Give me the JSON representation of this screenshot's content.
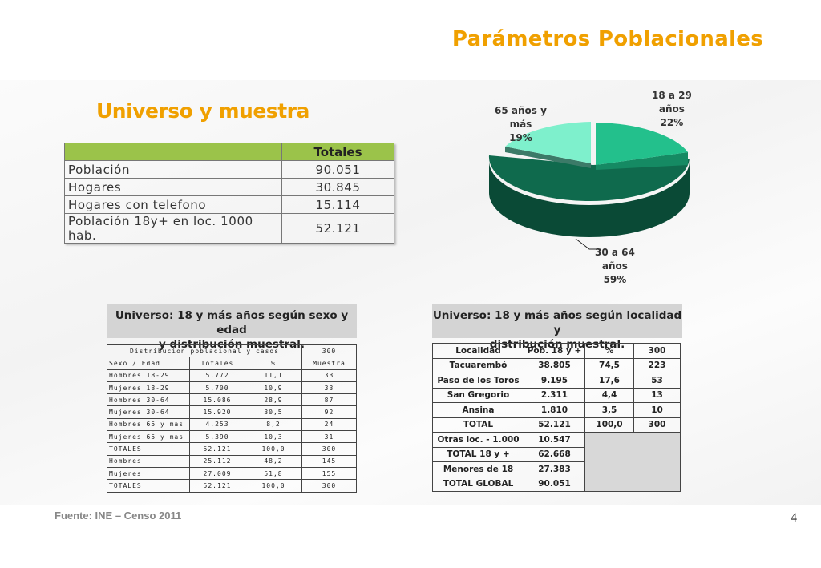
{
  "slide": {
    "title": "Parámetros Poblacionales",
    "page_number": "4",
    "subheading": "Universo y muestra",
    "source": "Fuente: INE – Censo 2011"
  },
  "universe_table": {
    "header": "Totales",
    "rows": [
      {
        "label": "Población",
        "value": "90.051"
      },
      {
        "label": "Hogares",
        "value": "30.845"
      },
      {
        "label": "Hogares con telefono",
        "value": "15.114"
      },
      {
        "label": "Población 18y+ en loc. 1000 hab.",
        "value": "52.121"
      }
    ]
  },
  "pie": {
    "slices": [
      {
        "label_lines": [
          "18 a 29",
          "años",
          "22%"
        ],
        "percent": 22,
        "color": "#23c08c"
      },
      {
        "label_lines": [
          "30 a 64",
          "años",
          "59%"
        ],
        "percent": 59,
        "color": "#0f6a4d"
      },
      {
        "label_lines": [
          "65 años y",
          "más",
          "19%"
        ],
        "percent": 19,
        "color": "#7ef0cc"
      }
    ]
  },
  "sexage": {
    "heading_line1": "Universo: 18 y más años según sexo y edad",
    "heading_line2": "y distribución muestral.",
    "top_row": {
      "label": "Distribucion poblacional y casos",
      "value": "300"
    },
    "columns": [
      "Sexo / Edad",
      "Totales",
      "%",
      "Muestra"
    ],
    "rows": [
      [
        "Hombres 18-29",
        "5.772",
        "11,1",
        "33"
      ],
      [
        "Mujeres 18-29",
        "5.700",
        "10,9",
        "33"
      ],
      [
        "Hombres 30-64",
        "15.086",
        "28,9",
        "87"
      ],
      [
        "Mujeres 30-64",
        "15.920",
        "30,5",
        "92"
      ],
      [
        "Hombres 65 y mas",
        "4.253",
        "8,2",
        "24"
      ],
      [
        "Mujeres 65 y mas",
        "5.390",
        "10,3",
        "31"
      ],
      [
        "TOTALES",
        "52.121",
        "100,0",
        "300"
      ],
      [
        "Hombres",
        "25.112",
        "48,2",
        "145"
      ],
      [
        "Mujeres",
        "27.009",
        "51,8",
        "155"
      ],
      [
        "TOTALES",
        "52.121",
        "100,0",
        "300"
      ]
    ]
  },
  "locality": {
    "heading_line1": "Universo: 18 y más años según localidad y",
    "heading_line2": "distribución muestral.",
    "columns": [
      "Localidad",
      "Pob. 18 y +",
      "%",
      "300"
    ],
    "rows": [
      [
        "Tacuarembó",
        "38.805",
        "74,5",
        "223"
      ],
      [
        "Paso de los Toros",
        "9.195",
        "17,6",
        "53"
      ],
      [
        "San Gregorio",
        "2.311",
        "4,4",
        "13"
      ],
      [
        "Ansina",
        "1.810",
        "3,5",
        "10"
      ],
      [
        "TOTAL",
        "52.121",
        "100,0",
        "300"
      ]
    ],
    "extra_rows": [
      [
        "Otras loc. - 1.000",
        "10.547"
      ],
      [
        "TOTAL 18 y +",
        "62.668"
      ],
      [
        "Menores de 18",
        "27.383"
      ],
      [
        "TOTAL GLOBAL",
        "90.051"
      ]
    ]
  }
}
